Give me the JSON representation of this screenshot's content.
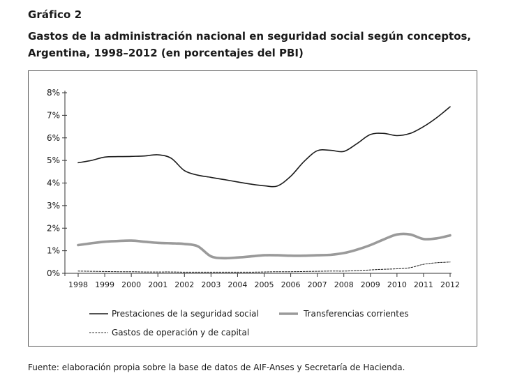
{
  "figure": {
    "label": "Gráfico 2",
    "title": "Gastos de la administración nacional en seguridad social según conceptos, Argentina, 1998–2012 (en porcentajes del PBI)",
    "source": "Fuente: elaboración propia sobre la base de datos de AIF-Anses y Secretaría de Hacienda."
  },
  "chart_data": {
    "type": "line",
    "title": "Gastos de la administración nacional en seguridad social según conceptos, Argentina, 1998–2012 (en porcentajes del PBI)",
    "xlabel": "",
    "ylabel": "",
    "x": [
      1998,
      1998.5,
      1999,
      1999.5,
      2000,
      2000.5,
      2001,
      2001.5,
      2002,
      2002.5,
      2003,
      2003.5,
      2004,
      2004.5,
      2005,
      2005.5,
      2006,
      2006.5,
      2007,
      2007.5,
      2008,
      2008.5,
      2009,
      2009.5,
      2010,
      2010.5,
      2011,
      2011.5,
      2012
    ],
    "x_ticks": [
      "1998",
      "1999",
      "2000",
      "2001",
      "2002",
      "2003",
      "2004",
      "2005",
      "2006",
      "2007",
      "2008",
      "2009",
      "2010",
      "2011",
      "2012"
    ],
    "y_ticks": [
      "0%",
      "1%",
      "2%",
      "3%",
      "4%",
      "5%",
      "6%",
      "7%",
      "8%"
    ],
    "ylim": [
      0,
      8
    ],
    "xlim": [
      1998,
      2012
    ],
    "grid": false,
    "legend_position": "bottom",
    "series": [
      {
        "name": "Prestaciones de la seguridad social",
        "style": "solid-thin",
        "color": "#1a1a1a",
        "values": [
          4.9,
          5.0,
          5.15,
          5.17,
          5.18,
          5.2,
          5.25,
          5.1,
          4.55,
          4.35,
          4.25,
          4.15,
          4.05,
          3.95,
          3.88,
          3.87,
          4.3,
          4.95,
          5.43,
          5.45,
          5.4,
          5.75,
          6.15,
          6.2,
          6.1,
          6.2,
          6.5,
          6.9,
          7.38
        ]
      },
      {
        "name": "Transferencias corrientes",
        "style": "solid-thick",
        "color": "#9a9a9a",
        "values": [
          1.25,
          1.33,
          1.4,
          1.43,
          1.45,
          1.4,
          1.35,
          1.33,
          1.3,
          1.2,
          0.75,
          0.67,
          0.7,
          0.75,
          0.8,
          0.8,
          0.78,
          0.78,
          0.8,
          0.82,
          0.9,
          1.05,
          1.25,
          1.5,
          1.72,
          1.72,
          1.52,
          1.55,
          1.68
        ]
      },
      {
        "name": "Gastos de operación y de capital",
        "style": "dashed",
        "color": "#1a1a1a",
        "values": [
          0.1,
          0.09,
          0.08,
          0.07,
          0.07,
          0.06,
          0.06,
          0.06,
          0.05,
          0.05,
          0.05,
          0.05,
          0.05,
          0.05,
          0.06,
          0.07,
          0.07,
          0.08,
          0.09,
          0.1,
          0.1,
          0.12,
          0.15,
          0.18,
          0.2,
          0.25,
          0.4,
          0.47,
          0.5
        ]
      }
    ]
  }
}
